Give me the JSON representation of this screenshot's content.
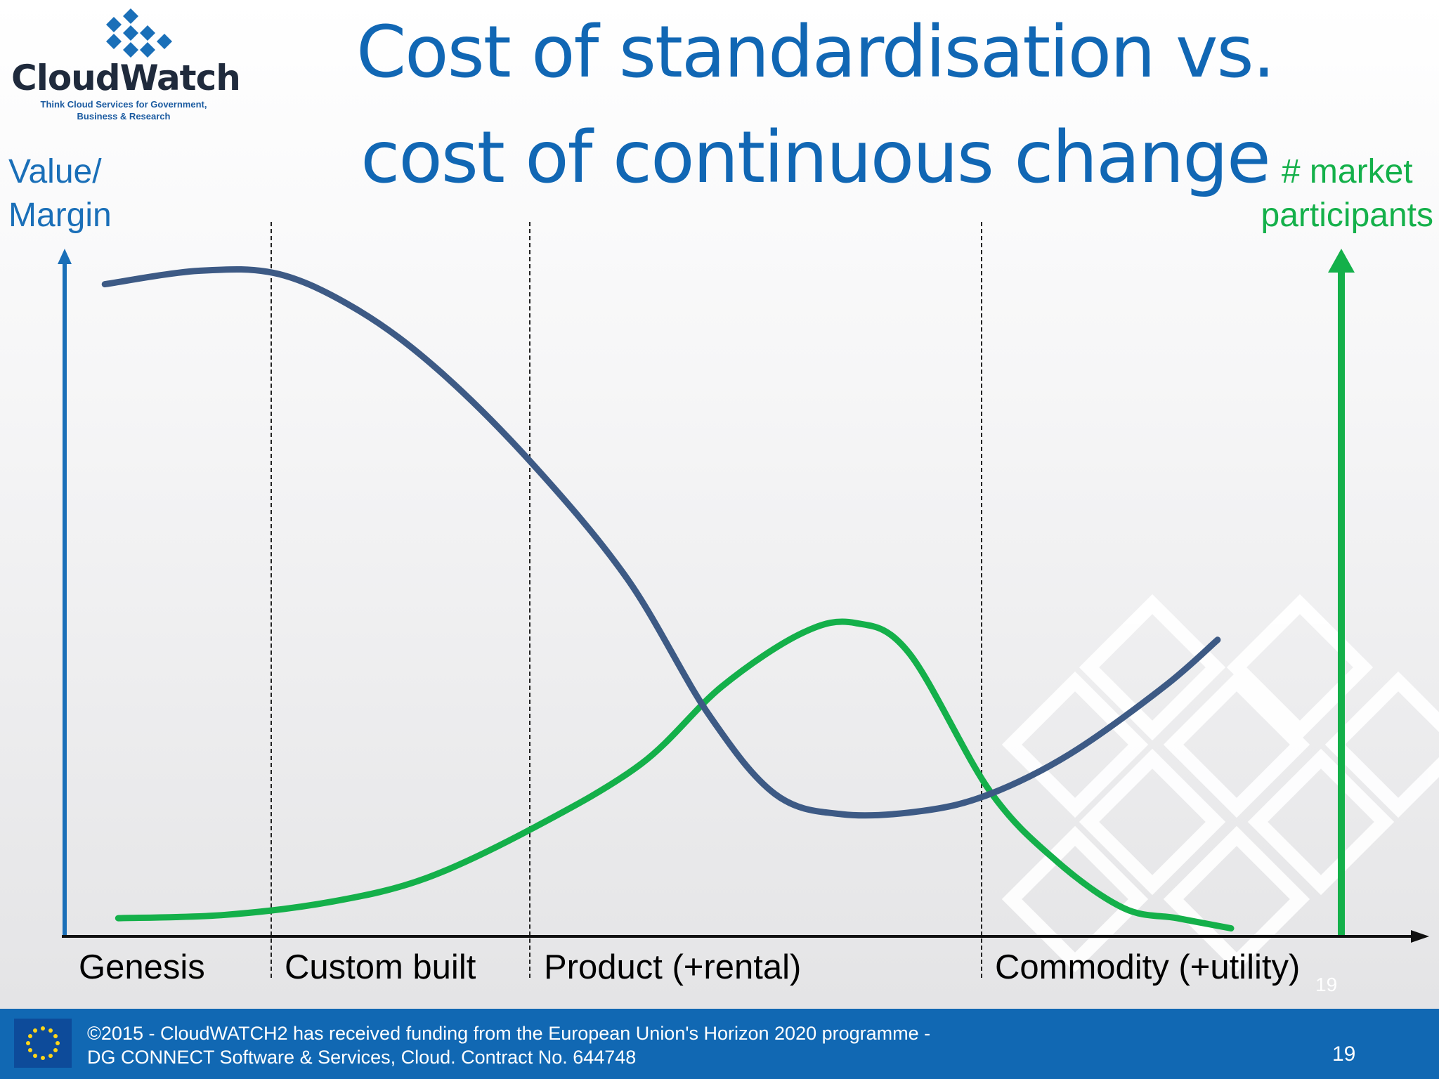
{
  "title_line1": "Cost of standardisation vs.",
  "title_line2": "cost of continuous change",
  "logo": {
    "name": "CloudWatch",
    "tagline_line1": "Think Cloud Services for Government,",
    "tagline_line2": "Business & Research"
  },
  "left_axis_label_line1": "Value/",
  "left_axis_label_line2": "Margin",
  "right_axis_label_line1": "# market",
  "right_axis_label_line2": "participants",
  "colors": {
    "title": "#1167b4",
    "value_margin_line": "#3d5a85",
    "participants_line": "#14b04a",
    "left_axis": "#1a6fb8",
    "right_axis": "#14b04a",
    "footer": "#1168b3"
  },
  "chart_data": {
    "type": "line",
    "x_stages": [
      "Genesis",
      "Custom built",
      "Product (+rental)",
      "Commodity (+utility)"
    ],
    "xlim": [
      0,
      100
    ],
    "ylim": [
      0,
      100
    ],
    "stage_boundaries": [
      16.1,
      35.4,
      69.1
    ],
    "grid": false,
    "series": [
      {
        "key": "value_margin",
        "color": "#3d5a85",
        "x": [
          3,
          10,
          16,
          22,
          28,
          35,
          42,
          48,
          53,
          58,
          64,
          69,
          75,
          82,
          86
        ],
        "y": [
          97,
          99,
          98.5,
          93,
          84,
          70,
          53,
          33,
          21,
          18,
          18.5,
          21,
          27,
          37,
          44
        ]
      },
      {
        "key": "participants",
        "color": "#14b04a",
        "x": [
          4,
          12,
          20,
          27,
          35,
          43,
          49,
          55,
          59,
          63,
          69,
          74,
          79,
          83,
          87
        ],
        "y": [
          2.5,
          3,
          5,
          8.5,
          16,
          25.5,
          37,
          45,
          46.5,
          42,
          21.5,
          11,
          4,
          2.5,
          1
        ]
      }
    ]
  },
  "slide_number_inline": "19",
  "footer": {
    "line1": "©2015 - CloudWATCH2 has received funding from the European Union's Horizon 2020 programme -",
    "line2": "DG CONNECT Software & Services, Cloud. Contract No. 644748",
    "page_number": "19"
  }
}
